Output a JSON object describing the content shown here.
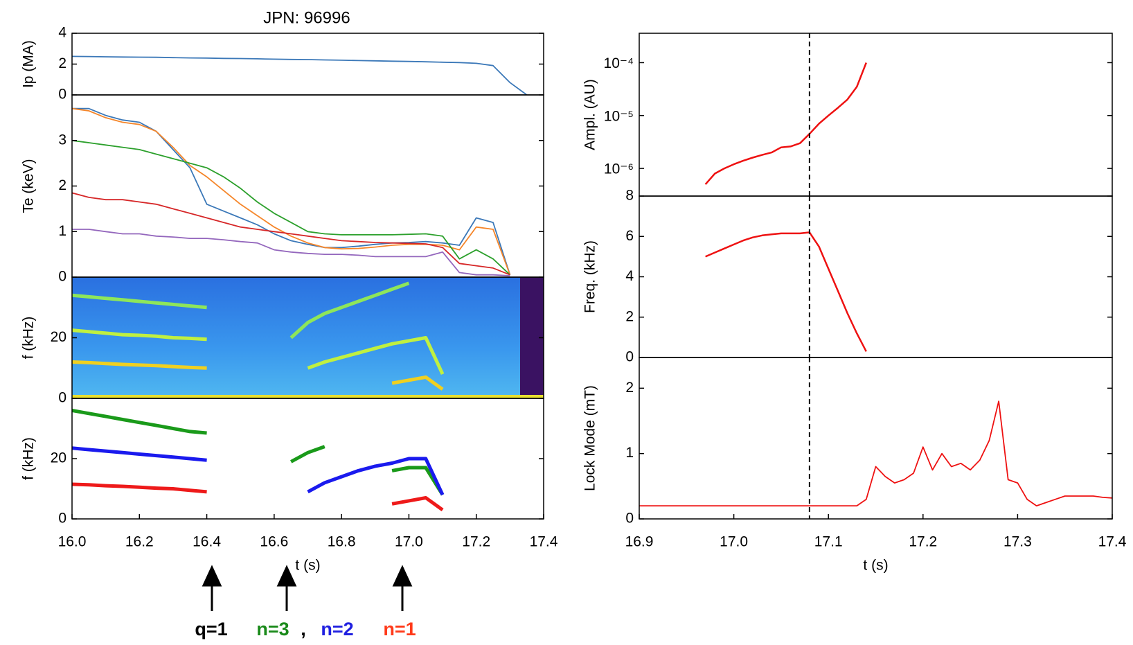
{
  "chart_data": [
    {
      "type": "line",
      "title": "JPN: 96996",
      "ylabel": "Ip (MA)",
      "xlim": [
        16.0,
        17.4
      ],
      "ylim": [
        0,
        4
      ],
      "yticks": [
        0,
        2,
        4
      ],
      "x": [
        16.0,
        16.05,
        16.1,
        16.15,
        16.2,
        16.25,
        16.3,
        16.35,
        16.4,
        16.45,
        16.5,
        16.55,
        16.6,
        16.65,
        16.7,
        16.75,
        16.8,
        16.85,
        16.9,
        16.95,
        17.0,
        17.05,
        17.1,
        17.15,
        17.2,
        17.25,
        17.3,
        17.35
      ],
      "series": [
        {
          "color": "#3b78b8",
          "values": [
            2.5,
            2.49,
            2.47,
            2.46,
            2.45,
            2.44,
            2.42,
            2.4,
            2.39,
            2.37,
            2.36,
            2.34,
            2.32,
            2.3,
            2.29,
            2.27,
            2.25,
            2.23,
            2.21,
            2.19,
            2.17,
            2.15,
            2.12,
            2.1,
            2.05,
            1.9,
            0.8,
            0.0
          ]
        }
      ]
    },
    {
      "type": "line",
      "ylabel": "Te (keV)",
      "xlim": [
        16.0,
        17.4
      ],
      "ylim": [
        0,
        4
      ],
      "yticks": [
        0,
        1,
        2,
        3
      ],
      "x": [
        16.0,
        16.05,
        16.1,
        16.15,
        16.2,
        16.25,
        16.3,
        16.35,
        16.4,
        16.45,
        16.5,
        16.55,
        16.6,
        16.65,
        16.7,
        16.75,
        16.8,
        16.85,
        16.9,
        16.95,
        17.0,
        17.05,
        17.1,
        17.15,
        17.2,
        17.25,
        17.3,
        17.35
      ],
      "series": [
        {
          "color": "#3b78b8",
          "values": [
            3.7,
            3.7,
            3.55,
            3.45,
            3.4,
            3.2,
            2.8,
            2.4,
            1.6,
            1.45,
            1.3,
            1.15,
            0.95,
            0.8,
            0.72,
            0.65,
            0.65,
            0.68,
            0.72,
            0.75,
            0.76,
            0.78,
            0.75,
            0.7,
            1.3,
            1.2,
            0.05,
            null
          ]
        },
        {
          "color": "#f5862a",
          "values": [
            3.7,
            3.65,
            3.5,
            3.4,
            3.35,
            3.2,
            2.85,
            2.45,
            2.2,
            1.9,
            1.6,
            1.35,
            1.1,
            0.9,
            0.75,
            0.65,
            0.62,
            0.63,
            0.66,
            0.7,
            0.72,
            0.72,
            0.7,
            0.6,
            1.1,
            1.05,
            0.05,
            null
          ]
        },
        {
          "color": "#2ca02c",
          "values": [
            3.0,
            2.95,
            2.9,
            2.85,
            2.8,
            2.7,
            2.6,
            2.5,
            2.4,
            2.2,
            1.95,
            1.65,
            1.4,
            1.2,
            1.0,
            0.95,
            0.93,
            0.93,
            0.93,
            0.93,
            0.94,
            0.95,
            0.9,
            0.4,
            0.6,
            0.4,
            0.05,
            null
          ]
        },
        {
          "color": "#d62728",
          "values": [
            1.85,
            1.75,
            1.7,
            1.7,
            1.65,
            1.6,
            1.5,
            1.4,
            1.3,
            1.2,
            1.1,
            1.05,
            1.0,
            0.95,
            0.9,
            0.85,
            0.8,
            0.78,
            0.76,
            0.75,
            0.74,
            0.73,
            0.65,
            0.3,
            0.25,
            0.2,
            0.05,
            null
          ]
        },
        {
          "color": "#9467bd",
          "values": [
            1.05,
            1.05,
            1.0,
            0.95,
            0.95,
            0.9,
            0.88,
            0.85,
            0.85,
            0.82,
            0.78,
            0.75,
            0.6,
            0.55,
            0.52,
            0.5,
            0.5,
            0.48,
            0.45,
            0.45,
            0.45,
            0.45,
            0.55,
            0.1,
            0.05,
            0.05,
            0.03,
            null
          ]
        }
      ]
    },
    {
      "type": "spectrogram",
      "ylabel": "f (kHz)",
      "xlim": [
        16.0,
        17.4
      ],
      "ylim": [
        0,
        40
      ],
      "yticks": [
        0,
        20
      ],
      "x": [
        16.0,
        16.05,
        16.1,
        16.15,
        16.2,
        16.25,
        16.3,
        16.35,
        16.4,
        16.45,
        16.5,
        16.55,
        16.6,
        16.65,
        16.7,
        16.75,
        16.8,
        16.85,
        16.9,
        16.95,
        17.0,
        17.05,
        17.1,
        17.15,
        17.2,
        17.25,
        17.3,
        17.35
      ],
      "series": [
        {
          "color": "#8ee65a",
          "values": [
            34,
            33.5,
            33,
            32.5,
            32,
            31.5,
            31,
            30.5,
            30,
            null,
            null,
            null,
            null,
            20,
            25,
            28,
            30,
            32,
            34,
            36,
            38,
            null,
            null,
            null,
            null,
            null,
            null,
            null
          ]
        },
        {
          "color": "#c0f040",
          "values": [
            22.5,
            22,
            21.5,
            21,
            20.8,
            20.5,
            20,
            19.8,
            19.5,
            null,
            null,
            null,
            null,
            null,
            10,
            12,
            13.5,
            15,
            16.5,
            18,
            19,
            20,
            8,
            null,
            null,
            null,
            null,
            null
          ]
        },
        {
          "color": "#f0d020",
          "values": [
            12,
            11.8,
            11.5,
            11.2,
            11,
            10.8,
            10.5,
            10.2,
            10,
            null,
            null,
            null,
            null,
            null,
            null,
            null,
            null,
            null,
            null,
            5,
            6,
            7,
            3,
            null,
            null,
            null,
            null,
            null
          ]
        }
      ]
    },
    {
      "type": "line",
      "ylabel": "f (kHz)",
      "xlabel": "t (s)",
      "xlim": [
        16.0,
        17.4
      ],
      "ylim": [
        0,
        40
      ],
      "yticks": [
        0,
        20
      ],
      "xticks": [
        {
          "value": 16.0,
          "label": "16.0"
        },
        16.2,
        16.4,
        16.6,
        16.8,
        {
          "value": 17.0,
          "label": "17.0"
        },
        17.2,
        17.4
      ],
      "x": [
        16.0,
        16.05,
        16.1,
        16.15,
        16.2,
        16.25,
        16.3,
        16.35,
        16.4,
        16.45,
        16.5,
        16.55,
        16.6,
        16.65,
        16.7,
        16.75,
        16.8,
        16.85,
        16.9,
        16.95,
        17.0,
        17.05,
        17.1,
        17.15,
        17.2,
        17.25,
        17.3,
        17.35
      ],
      "series": [
        {
          "color": "#1a9a1a",
          "values": [
            36,
            35,
            34,
            33,
            32,
            31,
            30,
            29,
            28.5,
            null,
            null,
            null,
            null,
            19,
            22,
            24,
            null,
            null,
            null,
            16,
            17,
            17,
            8,
            null,
            null,
            null,
            null,
            null
          ]
        },
        {
          "color": "#1a1aee",
          "values": [
            23.5,
            23,
            22.5,
            22,
            21.5,
            21,
            20.5,
            20,
            19.5,
            null,
            null,
            null,
            null,
            null,
            9,
            12,
            14,
            16,
            17.5,
            18.5,
            20,
            20,
            8,
            null,
            null,
            null,
            null,
            null
          ]
        },
        {
          "color": "#ee1a1a",
          "values": [
            11.5,
            11.3,
            11,
            10.8,
            10.5,
            10.2,
            10,
            9.5,
            9,
            null,
            null,
            null,
            null,
            null,
            null,
            null,
            null,
            null,
            null,
            5,
            6,
            7,
            3,
            null,
            null,
            null,
            null,
            null
          ]
        }
      ],
      "annotations": [
        {
          "text": "q=1",
          "color": "#000000"
        },
        {
          "text": "n=3",
          "color": "#1a8a1a"
        },
        {
          "text": ",",
          "color": "#000000"
        },
        {
          "text": "n=2",
          "color": "#2020e0"
        },
        {
          "text": "n=1",
          "color": "#ff3a1a"
        }
      ]
    },
    {
      "type": "line",
      "ylabel": "Ampl. (AU)",
      "log_y": true,
      "xlim": [
        16.9,
        17.4
      ],
      "ylim": [
        3e-07,
        0.00036
      ],
      "vline": 17.08,
      "yticks": [
        {
          "value": 1e-06,
          "label": "10⁻⁶"
        },
        {
          "value": 1e-05,
          "label": "10⁻⁵"
        },
        {
          "value": 0.0001,
          "label": "10⁻⁴"
        }
      ],
      "x": [
        16.9,
        16.91,
        16.92,
        16.93,
        16.94,
        16.95,
        16.96,
        16.97,
        16.98,
        16.99,
        17.0,
        17.01,
        17.02,
        17.03,
        17.04,
        17.05,
        17.06,
        17.07,
        17.08,
        17.09,
        17.1,
        17.11,
        17.12,
        17.13,
        17.14,
        17.15,
        17.16,
        17.17,
        17.18,
        17.19,
        17.2,
        17.21,
        17.22,
        17.23,
        17.24,
        17.25,
        17.26,
        17.27,
        17.28,
        17.29,
        17.3,
        17.31,
        17.32,
        17.33,
        17.34,
        17.35,
        17.36,
        17.37,
        17.38,
        17.39,
        17.4
      ],
      "series": [
        {
          "color": "#ee1111",
          "values": [
            null,
            null,
            null,
            null,
            null,
            null,
            null,
            5e-07,
            8e-07,
            1e-06,
            1.2e-06,
            1.4e-06,
            1.6e-06,
            1.8e-06,
            2e-06,
            2.5e-06,
            2.6e-06,
            3e-06,
            4.5e-06,
            7e-06,
            1e-05,
            1.4e-05,
            2e-05,
            3.5e-05,
            0.0001,
            null,
            null,
            null,
            null,
            null,
            null,
            null,
            null,
            null,
            null,
            null,
            null,
            null,
            null,
            null,
            null,
            null,
            null,
            null,
            null,
            null,
            null,
            null,
            null,
            null,
            null
          ]
        }
      ]
    },
    {
      "type": "line",
      "ylabel": "Freq. (kHz)",
      "xlim": [
        16.9,
        17.4
      ],
      "ylim": [
        0,
        8
      ],
      "yticks": [
        0,
        2,
        4,
        6,
        8
      ],
      "vline": 17.08,
      "x": [
        16.9,
        16.91,
        16.92,
        16.93,
        16.94,
        16.95,
        16.96,
        16.97,
        16.98,
        16.99,
        17.0,
        17.01,
        17.02,
        17.03,
        17.04,
        17.05,
        17.06,
        17.07,
        17.08,
        17.09,
        17.1,
        17.11,
        17.12,
        17.13,
        17.14,
        17.15,
        17.16,
        17.17,
        17.18,
        17.19,
        17.2,
        17.21,
        17.22,
        17.23,
        17.24,
        17.25,
        17.26,
        17.27,
        17.28,
        17.29,
        17.3,
        17.31,
        17.32,
        17.33,
        17.34,
        17.35,
        17.36,
        17.37,
        17.38,
        17.39,
        17.4
      ],
      "series": [
        {
          "color": "#ee1111",
          "values": [
            null,
            null,
            null,
            null,
            null,
            null,
            null,
            5.0,
            5.2,
            5.4,
            5.6,
            5.8,
            5.95,
            6.05,
            6.1,
            6.15,
            6.15,
            6.15,
            6.2,
            5.5,
            4.4,
            3.3,
            2.2,
            1.2,
            0.3,
            null,
            null,
            null,
            null,
            null,
            null,
            null,
            null,
            null,
            null,
            null,
            null,
            null,
            null,
            null,
            null,
            null,
            null,
            null,
            null,
            null,
            null,
            null,
            null,
            null,
            null
          ]
        }
      ]
    },
    {
      "type": "line",
      "ylabel": "Lock Mode (mT)",
      "xlabel": "t (s)",
      "xlim": [
        16.9,
        17.4
      ],
      "ylim": [
        0,
        2.47
      ],
      "yticks": [
        0,
        1,
        2
      ],
      "vline": 17.08,
      "xticks": [
        16.9,
        {
          "value": 17.0,
          "label": "17.0"
        },
        17.1,
        17.2,
        17.3,
        17.4
      ],
      "x": [
        16.9,
        16.91,
        16.92,
        16.93,
        16.94,
        16.95,
        16.96,
        16.97,
        16.98,
        16.99,
        17.0,
        17.01,
        17.02,
        17.03,
        17.04,
        17.05,
        17.06,
        17.07,
        17.08,
        17.09,
        17.1,
        17.11,
        17.12,
        17.13,
        17.14,
        17.15,
        17.16,
        17.17,
        17.18,
        17.19,
        17.2,
        17.21,
        17.22,
        17.23,
        17.24,
        17.25,
        17.26,
        17.27,
        17.28,
        17.29,
        17.3,
        17.31,
        17.32,
        17.33,
        17.34,
        17.35,
        17.36,
        17.37,
        17.38,
        17.39,
        17.4
      ],
      "series": [
        {
          "color": "#ee1111",
          "values": [
            0.2,
            0.2,
            0.2,
            0.2,
            0.2,
            0.2,
            0.2,
            0.2,
            0.2,
            0.2,
            0.2,
            0.2,
            0.2,
            0.2,
            0.2,
            0.2,
            0.2,
            0.2,
            0.2,
            0.2,
            0.2,
            0.2,
            0.2,
            0.2,
            0.3,
            0.8,
            0.65,
            0.55,
            0.6,
            0.7,
            1.1,
            0.75,
            1.0,
            0.8,
            0.85,
            0.75,
            0.9,
            1.2,
            1.8,
            0.6,
            0.55,
            0.3,
            0.2,
            0.25,
            0.3,
            0.35,
            0.35,
            0.35,
            0.35,
            0.33,
            0.32
          ]
        }
      ]
    }
  ]
}
